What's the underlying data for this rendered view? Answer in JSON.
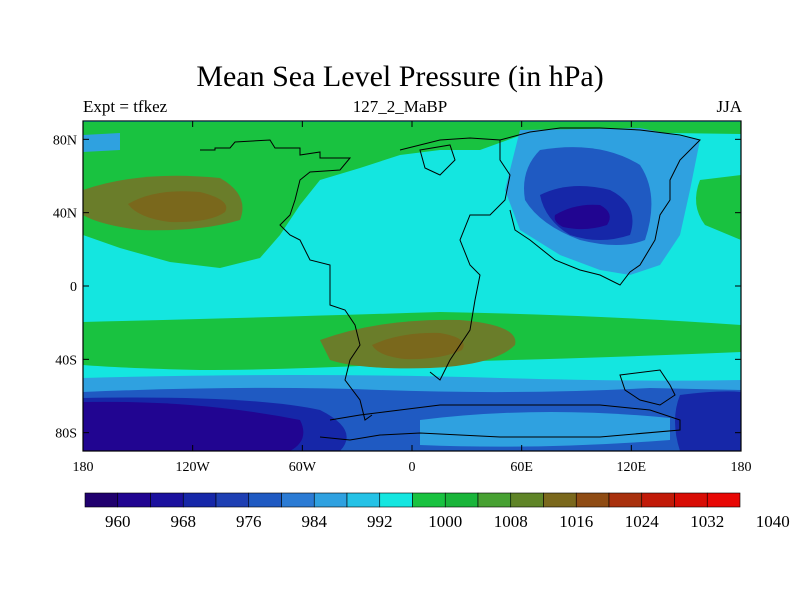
{
  "title": "Mean Sea Level Pressure (in hPa)",
  "left_subtitle": "Expt = tfkez",
  "center_subtitle": "127_2_MaBP",
  "right_subtitle": "JJA",
  "map": {
    "projection": "cylindrical equidistant",
    "lon_range": [
      -180,
      180
    ],
    "lat_range": [
      -90,
      90
    ],
    "x_ticks": [
      {
        "value": -180,
        "label": "180"
      },
      {
        "value": -120,
        "label": "120W"
      },
      {
        "value": -60,
        "label": "60W"
      },
      {
        "value": 0,
        "label": "0"
      },
      {
        "value": 60,
        "label": "60E"
      },
      {
        "value": 120,
        "label": "120E"
      },
      {
        "value": 180,
        "label": "180"
      }
    ],
    "y_ticks": [
      {
        "value": 80,
        "label": "80N"
      },
      {
        "value": 40,
        "label": "40N"
      },
      {
        "value": 0,
        "label": "0"
      },
      {
        "value": -40,
        "label": "40S"
      },
      {
        "value": -80,
        "label": "80S"
      }
    ],
    "background_level": 1000,
    "regions": [
      {
        "name": "southern-ocean-low",
        "level": 964,
        "lon": -175,
        "lat": -75,
        "rlon": 70,
        "rlat": 14
      },
      {
        "name": "asian-low",
        "level": 968,
        "lon": 95,
        "lat": 37,
        "rlon": 22,
        "rlat": 9
      },
      {
        "name": "north-pacific-high",
        "level": 1016,
        "lon": -150,
        "lat": 42,
        "rlon": 30,
        "rlat": 10
      },
      {
        "name": "south-atlantic-high",
        "level": 1016,
        "lon": 0,
        "lat": -32,
        "rlon": 35,
        "rlat": 8
      }
    ]
  },
  "colorbar": {
    "colors": [
      "#20006e",
      "#210591",
      "#1b119e",
      "#1627a8",
      "#1e3fb3",
      "#1f5ac2",
      "#2b7bd4",
      "#2fa1e0",
      "#25c2e6",
      "#14e6e0",
      "#19c240",
      "#1ab53a",
      "#47a132",
      "#5f8427",
      "#7a681c",
      "#8f4c14",
      "#a8300c",
      "#c11a08",
      "#d80c05",
      "#e80704"
    ],
    "labels": [
      "960",
      "968",
      "976",
      "984",
      "992",
      "1000",
      "1008",
      "1016",
      "1024",
      "1032",
      "1040"
    ]
  }
}
